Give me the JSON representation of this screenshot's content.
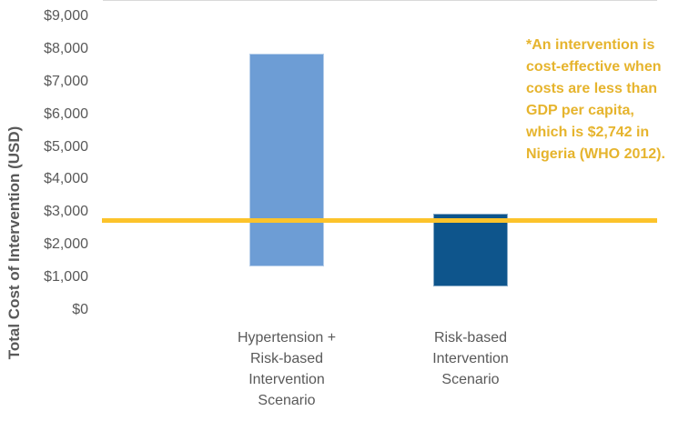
{
  "chart_data": {
    "type": "bar",
    "subtype": "floating_range_bars",
    "title": "",
    "xlabel": "",
    "ylabel": "Total Cost of Intervention (USD)",
    "ylim": [
      0,
      9000
    ],
    "ytick_step": 1000,
    "ytick_labels": [
      "$0",
      "$1,000",
      "$2,000",
      "$3,000",
      "$4,000",
      "$5,000",
      "$6,000",
      "$7,000",
      "$8,000",
      "$9,000"
    ],
    "grid": false,
    "legend": "none",
    "bars": [
      {
        "category": "Hypertension + Risk-based Intervention Scenario",
        "category_lines": [
          "Hypertension +",
          "Risk-based",
          "Intervention",
          "Scenario"
        ],
        "low": 1350,
        "high": 7850,
        "color": "#6D9DD5"
      },
      {
        "category": "Risk-based Intervention Scenario",
        "category_lines": [
          "Risk-based",
          "Intervention",
          "Scenario"
        ],
        "low": 725,
        "high": 2950,
        "color": "#0E558C"
      }
    ],
    "reference_line": {
      "value": 2742,
      "color": "#FCC32B"
    },
    "annotation": {
      "text": "*An intervention is cost-effective when costs are less than GDP per capita, which is $2,742 in Nigeria (WHO 2012).",
      "lines": [
        "*An intervention is",
        "cost-effective when",
        "costs are less than",
        "GDP per capita,",
        "which is $2,742 in",
        "Nigeria (WHO 2012)."
      ],
      "color": "#E6B42D"
    },
    "colors": {
      "axis_text": "#595959",
      "baseline": "#D9D9D9"
    }
  }
}
